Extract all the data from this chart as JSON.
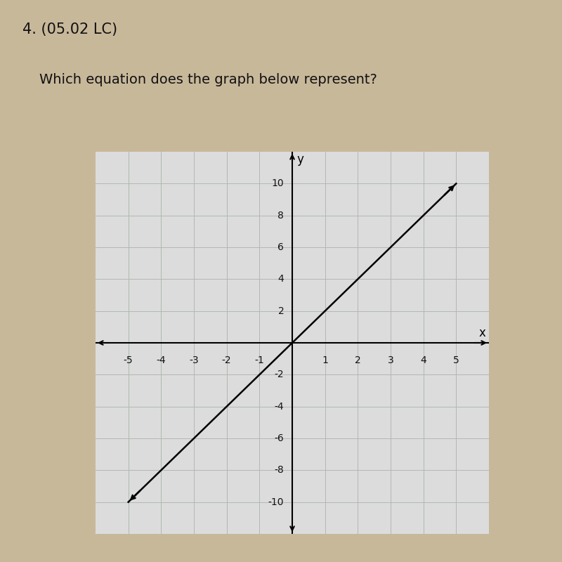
{
  "title_number": "4. (05.02 LC)",
  "question": "Which equation does the graph below represent?",
  "slope": 2,
  "x_ticks": [
    -5,
    -4,
    -3,
    -2,
    -1,
    1,
    2,
    3,
    4,
    5
  ],
  "y_ticks": [
    -10,
    -8,
    -6,
    -4,
    -2,
    2,
    4,
    6,
    8,
    10
  ],
  "line_color": "#000000",
  "grid_color": "#b0b8b0",
  "background_color": "#c8b89a",
  "grid_bg_color": "#dcdcdc",
  "axis_label_x": "x",
  "axis_label_y": "y",
  "title_fontsize": 15,
  "question_fontsize": 14,
  "tick_fontsize": 10
}
